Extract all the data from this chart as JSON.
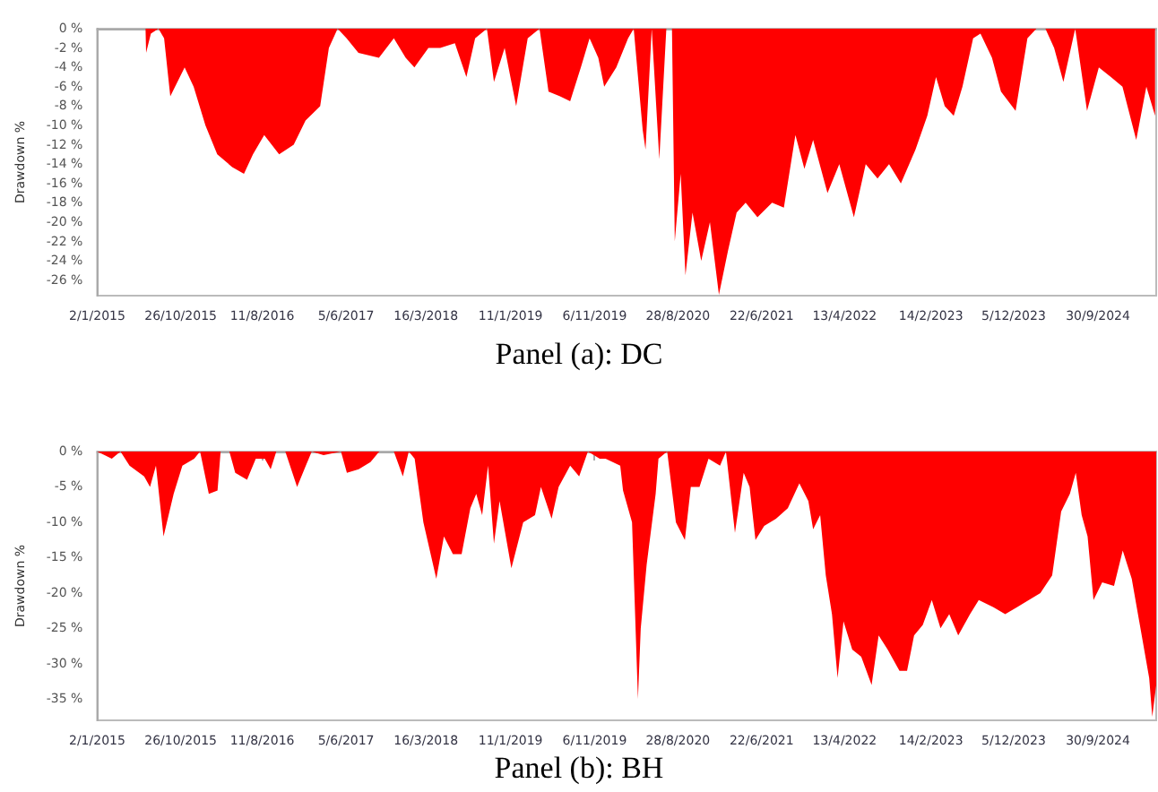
{
  "chart_data": [
    {
      "type": "area",
      "title": "Panel (a): DC",
      "ylabel": "Drawdown %",
      "xlim": [
        "2015-01-02",
        "2025-04-25"
      ],
      "ylim": [
        -27.6,
        0
      ],
      "xticks": [
        {
          "value": "2015-01-02",
          "label": "2/1/2015"
        },
        {
          "value": "2015-10-26",
          "label": "26/10/2015"
        },
        {
          "value": "2016-08-11",
          "label": "11/8/2016"
        },
        {
          "value": "2017-06-05",
          "label": "5/6/2017"
        },
        {
          "value": "2018-03-16",
          "label": "16/3/2018"
        },
        {
          "value": "2019-01-11",
          "label": "11/1/2019"
        },
        {
          "value": "2019-11-06",
          "label": "6/11/2019"
        },
        {
          "value": "2020-08-28",
          "label": "28/8/2020"
        },
        {
          "value": "2021-06-22",
          "label": "22/6/2021"
        },
        {
          "value": "2022-04-13",
          "label": "13/4/2022"
        },
        {
          "value": "2023-02-14",
          "label": "14/2/2023"
        },
        {
          "value": "2023-12-05",
          "label": "5/12/2023"
        },
        {
          "value": "2024-09-30",
          "label": "30/9/2024"
        }
      ],
      "yticks": [
        {
          "value": 0,
          "label": "0 %"
        },
        {
          "value": -2,
          "label": "-2 %"
        },
        {
          "value": -4,
          "label": "-4 %"
        },
        {
          "value": -6,
          "label": "-6 %"
        },
        {
          "value": -8,
          "label": "-8 %"
        },
        {
          "value": -10,
          "label": "-10 %"
        },
        {
          "value": -12,
          "label": "-12 %"
        },
        {
          "value": -14,
          "label": "-14 %"
        },
        {
          "value": -16,
          "label": "-16 %"
        },
        {
          "value": -18,
          "label": "-18 %"
        },
        {
          "value": -20,
          "label": "-20 %"
        },
        {
          "value": -22,
          "label": "-22 %"
        },
        {
          "value": -24,
          "label": "-24 %"
        },
        {
          "value": -26,
          "label": "-26 %"
        }
      ],
      "x": [
        "2015-01-02",
        "2015-06-23",
        "2015-06-25",
        "2015-07-12",
        "2015-08-08",
        "2015-08-28",
        "2015-09-19",
        "2015-11-09",
        "2015-12-11",
        "2016-01-22",
        "2016-03-04",
        "2016-04-26",
        "2016-06-07",
        "2016-07-09",
        "2016-08-18",
        "2016-10-10",
        "2016-12-01",
        "2017-01-12",
        "2017-03-05",
        "2017-04-05",
        "2017-05-06",
        "2017-06-07",
        "2017-07-19",
        "2017-09-30",
        "2017-11-22",
        "2018-01-03",
        "2018-02-03",
        "2018-03-25",
        "2018-05-06",
        "2018-06-27",
        "2018-08-07",
        "2018-09-07",
        "2018-10-19",
        "2018-11-13",
        "2018-12-21",
        "2019-01-31",
        "2019-03-13",
        "2019-04-24",
        "2019-05-26",
        "2019-07-06",
        "2019-08-11",
        "2019-09-18",
        "2019-10-19",
        "2019-11-19",
        "2019-12-10",
        "2020-01-22",
        "2020-03-04",
        "2020-03-24",
        "2020-04-25",
        "2020-05-05",
        "2020-05-27",
        "2020-06-23",
        "2020-07-18",
        "2020-08-07",
        "2020-08-17",
        "2020-09-07",
        "2020-09-24",
        "2020-10-19",
        "2020-11-19",
        "2020-12-20",
        "2021-01-21",
        "2021-02-22",
        "2021-03-25",
        "2021-04-26",
        "2021-06-07",
        "2021-07-29",
        "2021-09-09",
        "2021-10-20",
        "2021-11-21",
        "2021-12-22",
        "2022-02-11",
        "2022-03-25",
        "2022-05-16",
        "2022-06-27",
        "2022-08-08",
        "2022-09-18",
        "2022-10-30",
        "2022-12-21",
        "2023-02-01",
        "2023-03-04",
        "2023-04-04",
        "2023-05-06",
        "2023-06-06",
        "2023-07-14",
        "2023-08-09",
        "2023-09-19",
        "2023-10-21",
        "2023-12-12",
        "2024-01-23",
        "2024-02-24",
        "2024-03-27",
        "2024-04-27",
        "2024-05-30",
        "2024-07-11",
        "2024-08-22",
        "2024-10-03",
        "2024-11-15",
        "2024-12-26",
        "2025-02-13",
        "2025-03-21",
        "2025-04-21"
      ],
      "series": [
        {
          "color": "#ff0000",
          "values": [
            0,
            0,
            -2.5,
            -0.5,
            0,
            -1,
            -7,
            -4,
            -6,
            -10,
            -13,
            -14.3,
            -15,
            -13,
            -11,
            -13,
            -12,
            -9.5,
            -8,
            -2,
            0,
            -1,
            -2.5,
            -3,
            -1,
            -3,
            -4,
            -2,
            -2,
            -1.5,
            -5,
            -1,
            0,
            -5.5,
            -2,
            -8,
            -1,
            0,
            -6.5,
            -7,
            -7.5,
            -4,
            -1,
            -3,
            -6,
            -4,
            -1,
            0,
            -10.5,
            -12.5,
            0,
            -13.5,
            0,
            0,
            -22,
            -15,
            -25.5,
            -19,
            -24,
            -20,
            -27.5,
            -23,
            -19,
            -18,
            -19.5,
            -18,
            -18.5,
            -11,
            -14.5,
            -11.5,
            -17,
            -14,
            -19.5,
            -14,
            -15.5,
            -14,
            -16,
            -12.5,
            -9,
            -5,
            -8,
            -9,
            -6,
            -1,
            -0.5,
            -3,
            -6.5,
            -8.5,
            -1,
            0,
            0,
            -2,
            -5.5,
            0,
            -8.5,
            -4,
            -5,
            -6,
            -11.5,
            -6,
            -9
          ]
        }
      ]
    },
    {
      "type": "area",
      "title": "Panel (b): BH",
      "ylabel": "Drawdown %",
      "xlim": [
        "2015-01-02",
        "2025-04-25"
      ],
      "ylim": [
        -38,
        0
      ],
      "xticks": [
        {
          "value": "2015-01-02",
          "label": "2/1/2015"
        },
        {
          "value": "2015-10-26",
          "label": "26/10/2015"
        },
        {
          "value": "2016-08-11",
          "label": "11/8/2016"
        },
        {
          "value": "2017-06-05",
          "label": "5/6/2017"
        },
        {
          "value": "2018-03-16",
          "label": "16/3/2018"
        },
        {
          "value": "2019-01-11",
          "label": "11/1/2019"
        },
        {
          "value": "2019-11-06",
          "label": "6/11/2019"
        },
        {
          "value": "2020-08-28",
          "label": "28/8/2020"
        },
        {
          "value": "2021-06-22",
          "label": "22/6/2021"
        },
        {
          "value": "2022-04-13",
          "label": "13/4/2022"
        },
        {
          "value": "2023-02-14",
          "label": "14/2/2023"
        },
        {
          "value": "2023-12-05",
          "label": "5/12/2023"
        },
        {
          "value": "2024-09-30",
          "label": "30/9/2024"
        }
      ],
      "yticks": [
        {
          "value": 0,
          "label": "0 %"
        },
        {
          "value": -5,
          "label": "-5 %"
        },
        {
          "value": -10,
          "label": "-10 %"
        },
        {
          "value": -15,
          "label": "-15 %"
        },
        {
          "value": -20,
          "label": "-20 %"
        },
        {
          "value": -25,
          "label": "-25 %"
        },
        {
          "value": -30,
          "label": "-30 %"
        },
        {
          "value": -35,
          "label": "-35 %"
        }
      ],
      "x": [
        "2015-01-02",
        "2015-02-23",
        "2015-03-26",
        "2015-04-27",
        "2015-06-18",
        "2015-07-09",
        "2015-07-30",
        "2015-08-26",
        "2015-10-01",
        "2015-11-01",
        "2015-12-13",
        "2016-01-03",
        "2016-02-03",
        "2016-03-05",
        "2016-03-16",
        "2016-04-16",
        "2016-05-07",
        "2016-06-18",
        "2016-07-19",
        "2016-08-20",
        "2016-09-10",
        "2016-09-30",
        "2016-11-01",
        "2016-12-13",
        "2017-01-13",
        "2017-02-03",
        "2017-03-17",
        "2017-05-18",
        "2017-06-08",
        "2017-07-20",
        "2017-08-31",
        "2017-10-01",
        "2017-11-22",
        "2017-12-24",
        "2018-01-14",
        "2018-02-04",
        "2018-03-07",
        "2018-04-22",
        "2018-05-19",
        "2018-06-20",
        "2018-07-21",
        "2018-08-21",
        "2018-09-11",
        "2018-10-02",
        "2018-10-23",
        "2018-11-13",
        "2018-12-03",
        "2019-01-14",
        "2019-02-25",
        "2019-04-08",
        "2019-04-29",
        "2019-06-06",
        "2019-07-01",
        "2019-08-11",
        "2019-09-12",
        "2019-10-13",
        "2019-11-24",
        "2019-12-15",
        "2020-02-05",
        "2020-02-15",
        "2020-03-18",
        "2020-04-08",
        "2020-04-18",
        "2020-05-09",
        "2020-06-10",
        "2020-06-20",
        "2020-07-21",
        "2020-08-21",
        "2020-09-22",
        "2020-10-13",
        "2020-11-13",
        "2020-12-15",
        "2021-01-25",
        "2021-02-15",
        "2021-03-19",
        "2021-04-19",
        "2021-05-10",
        "2021-05-31",
        "2021-07-01",
        "2021-08-12",
        "2021-09-23",
        "2021-11-03",
        "2021-12-05",
        "2021-12-22",
        "2022-01-16",
        "2022-02-05",
        "2022-02-27",
        "2022-03-19",
        "2022-04-09",
        "2022-05-10",
        "2022-06-11",
        "2022-07-18",
        "2022-08-12",
        "2022-09-13",
        "2022-10-25",
        "2022-11-21",
        "2022-12-16",
        "2023-01-16",
        "2023-02-17",
        "2023-03-20",
        "2023-04-20",
        "2023-05-22",
        "2023-07-03",
        "2023-08-03",
        "2023-09-24",
        "2023-11-05",
        "2023-12-17",
        "2024-01-28",
        "2024-03-09",
        "2024-04-20",
        "2024-05-22",
        "2024-06-22",
        "2024-07-13",
        "2024-08-03",
        "2024-08-24",
        "2024-09-14",
        "2024-10-15",
        "2024-11-26",
        "2024-12-27",
        "2025-01-28",
        "2025-02-28",
        "2025-03-31",
        "2025-04-11",
        "2025-04-25"
      ],
      "series": [
        {
          "color": "#ff0000",
          "values": [
            0,
            -1,
            0,
            -2,
            -3.5,
            -5,
            -2,
            -12,
            -6,
            -2,
            -1,
            0,
            -6,
            -5.5,
            0,
            0,
            -3,
            -4,
            -1,
            -1,
            -2.5,
            0,
            0,
            -5,
            -2,
            0,
            -0.5,
            0,
            -3,
            -2.5,
            -1.5,
            0,
            0,
            -3.5,
            0,
            -1,
            -10,
            -18,
            -12,
            -14.5,
            -14.5,
            -8,
            -6,
            -9,
            -2,
            -13,
            -7,
            -16.5,
            -10,
            -9,
            -5,
            -9.5,
            -5,
            -2,
            -3.5,
            0,
            -1,
            -1,
            -2,
            -5.5,
            -10,
            -35,
            -25,
            -16,
            -6,
            -1,
            0,
            -10,
            -12.5,
            -5,
            -5,
            -1,
            -2,
            0,
            -11.5,
            -3,
            -5,
            -12.5,
            -10.5,
            -9.5,
            -8,
            -4.5,
            -7,
            -11,
            -9,
            -17.5,
            -23,
            -32,
            -24,
            -28,
            -29,
            -33,
            -26,
            -28,
            -31,
            -31,
            -26,
            -24.5,
            -21,
            -25,
            -23,
            -26,
            -23,
            -21,
            -22,
            -23,
            -22,
            -21,
            -20,
            -17.5,
            -8.5,
            -6,
            -3,
            -9,
            -12,
            -21,
            -18.5,
            -19,
            -14,
            -18,
            -25,
            -32,
            -37.5,
            -33
          ]
        }
      ]
    }
  ]
}
